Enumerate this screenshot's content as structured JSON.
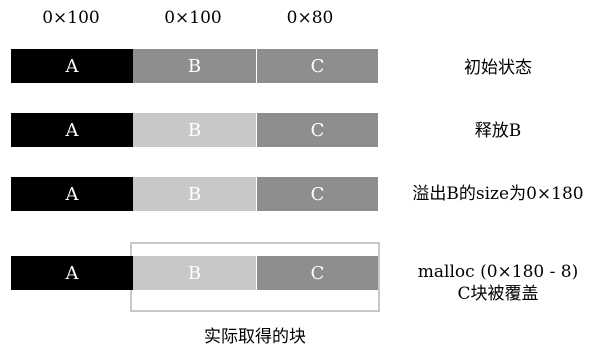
{
  "sizes": [
    "0×100",
    "0×100",
    "0×80"
  ],
  "rows": [
    {
      "blocks": [
        "A",
        "B",
        "C"
      ],
      "b_freed": false,
      "note": "初始状态"
    },
    {
      "blocks": [
        "A",
        "B",
        "C"
      ],
      "b_freed": true,
      "note": "释放B"
    },
    {
      "blocks": [
        "A",
        "B",
        "C"
      ],
      "b_freed": true,
      "note": "溢出B的size为0×180"
    },
    {
      "blocks": [
        "A",
        "B",
        "C"
      ],
      "b_freed": true,
      "note_line1": "malloc (0×180 - 8)",
      "note_line2": "C块被覆盖"
    }
  ],
  "caption": "实际取得的块",
  "colors": {
    "block_a": "#000000",
    "block_used": "#8e8e8e",
    "block_freed": "#c8c8c8",
    "outline": "#c8c8c8"
  }
}
